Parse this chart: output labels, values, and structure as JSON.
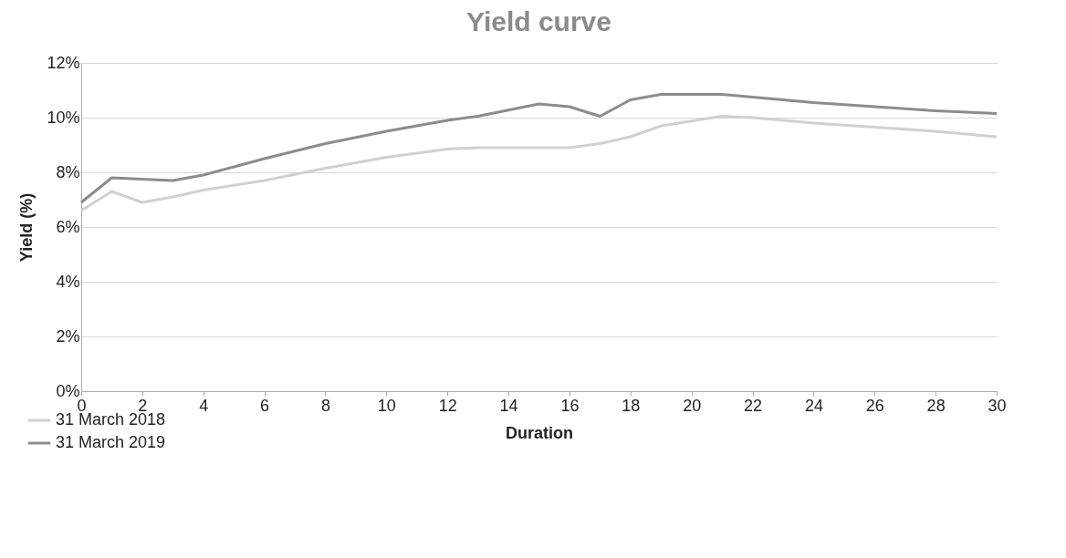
{
  "chart_data": {
    "type": "line",
    "title": "Yield curve",
    "xlabel": "Duration",
    "ylabel": "Yield (%)",
    "x": [
      0,
      1,
      2,
      3,
      4,
      6,
      8,
      10,
      12,
      13,
      15,
      16,
      17,
      18,
      19,
      21,
      22,
      24,
      26,
      28,
      30
    ],
    "series": [
      {
        "name": "31 March 2018",
        "color": "#d0d0d0",
        "x": [
          0,
          1,
          2,
          3,
          4,
          6,
          8,
          10,
          12,
          13,
          16,
          17,
          18,
          19,
          21,
          22,
          24,
          26,
          28,
          30
        ],
        "values": [
          6.6,
          7.3,
          6.9,
          7.1,
          7.35,
          7.7,
          8.15,
          8.55,
          8.85,
          8.9,
          8.9,
          9.05,
          9.3,
          9.7,
          10.05,
          10.0,
          9.8,
          9.65,
          9.5,
          9.3
        ]
      },
      {
        "name": "31 March 2019",
        "color": "#8c8c8c",
        "values": [
          6.9,
          7.8,
          7.75,
          7.7,
          7.9,
          8.5,
          9.05,
          9.5,
          9.9,
          10.05,
          10.5,
          10.4,
          10.05,
          10.65,
          10.85,
          10.85,
          10.75,
          10.55,
          10.4,
          10.25,
          10.15
        ]
      }
    ],
    "xlim": [
      0,
      30
    ],
    "xticks": [
      0,
      2,
      4,
      6,
      8,
      10,
      12,
      14,
      16,
      18,
      20,
      22,
      24,
      26,
      28,
      30
    ],
    "ylim": [
      0,
      12
    ],
    "yticks": [
      {
        "value": 0,
        "label": "0%"
      },
      {
        "value": 2,
        "label": "2%"
      },
      {
        "value": 4,
        "label": "4%"
      },
      {
        "value": 6,
        "label": "6%"
      },
      {
        "value": 8,
        "label": "8%"
      },
      {
        "value": 10,
        "label": "10%"
      },
      {
        "value": 12,
        "label": "12%"
      }
    ],
    "grid": "y",
    "legend": "bottom left",
    "marker": "none",
    "line_style": "solid"
  }
}
